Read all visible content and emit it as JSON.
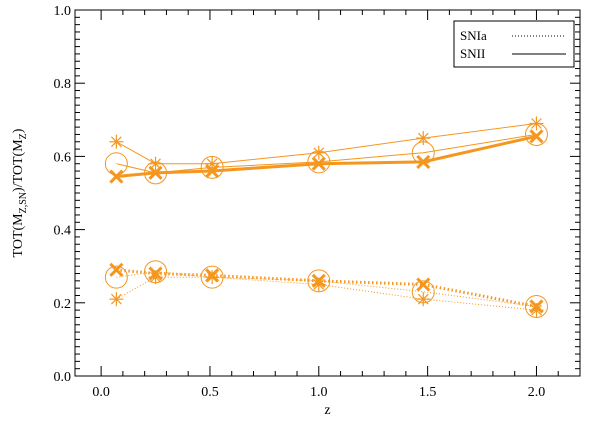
{
  "chart_data": {
    "type": "line",
    "xlabel": "z",
    "ylabel": "TOT(M",
    "ylabel_sub1": "Z,SN",
    "ylabel_mid": ")/TOT(M",
    "ylabel_sub2": "Z",
    "ylabel_end": ")",
    "xlim": [
      -0.12,
      2.2
    ],
    "ylim": [
      0.0,
      1.0
    ],
    "xticks": [
      0.0,
      0.5,
      1.0,
      1.5,
      2.0
    ],
    "xtick_labels": [
      "0.0",
      "0.5",
      "1.0",
      "1.5",
      "2.0"
    ],
    "yticks": [
      0.0,
      0.2,
      0.4,
      0.6,
      0.8,
      1.0
    ],
    "ytick_labels": [
      "0.0",
      "0.2",
      "0.4",
      "0.6",
      "0.8",
      "1.0"
    ],
    "grid": false,
    "legend": {
      "position": "top-right",
      "entries": [
        {
          "label": "SNIa",
          "style": "dotted"
        },
        {
          "label": "SNII",
          "style": "solid"
        }
      ]
    },
    "color": "#f5961e",
    "x": [
      0.07,
      0.25,
      0.51,
      1.0,
      1.48,
      2.0
    ],
    "series": [
      {
        "type": "SNII",
        "marker": "star",
        "width": 1,
        "values": [
          0.64,
          0.58,
          0.58,
          0.61,
          0.65,
          0.69
        ]
      },
      {
        "type": "SNII",
        "marker": "circle",
        "width": 1,
        "values": [
          0.58,
          0.555,
          0.57,
          0.585,
          0.61,
          0.66
        ]
      },
      {
        "type": "SNII",
        "marker": "x",
        "width": 3,
        "values": [
          0.545,
          0.555,
          0.56,
          0.58,
          0.585,
          0.655
        ]
      },
      {
        "type": "SNIa",
        "marker": "star",
        "width": 1,
        "values": [
          0.21,
          0.27,
          0.27,
          0.25,
          0.21,
          0.18
        ]
      },
      {
        "type": "SNIa",
        "marker": "circle",
        "width": 1,
        "values": [
          0.27,
          0.285,
          0.27,
          0.26,
          0.23,
          0.19
        ]
      },
      {
        "type": "SNIa",
        "marker": "x",
        "width": 3,
        "values": [
          0.29,
          0.28,
          0.275,
          0.26,
          0.25,
          0.19
        ]
      }
    ]
  }
}
